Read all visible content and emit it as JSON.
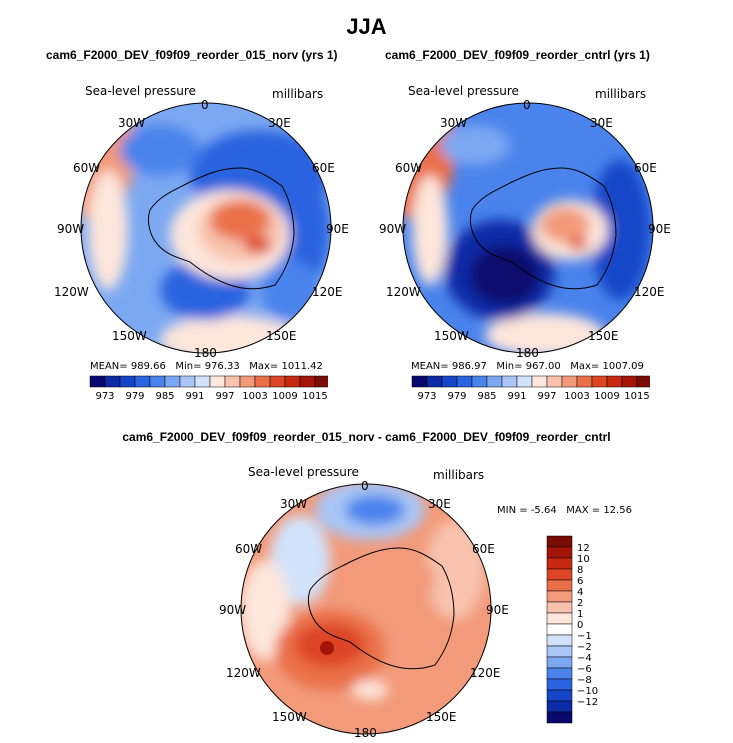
{
  "main_title": "JJA",
  "variable_label": "Sea-level pressure",
  "units_label": "millibars",
  "lon_labels": [
    "0",
    "30E",
    "60E",
    "90E",
    "120E",
    "150E",
    "180",
    "150W",
    "120W",
    "90W",
    "60W",
    "30W"
  ],
  "panels": [
    {
      "title": "cam6_F2000_DEV_f09f09_reorder_015_norv (yrs 1)",
      "stats": {
        "mean_label": "MEAN=",
        "mean": "989.66",
        "min_label": "Min=",
        "min": "976.33",
        "max_label": "Max=",
        "max": "1011.42"
      }
    },
    {
      "title": "cam6_F2000_DEV_f09f09_reorder_cntrl (yrs 1)",
      "stats": {
        "mean_label": "MEAN=",
        "mean": "986.97",
        "min_label": "Min=",
        "min": "967.00",
        "max_label": "Max=",
        "max": "1007.09"
      }
    },
    {
      "title": "cam6_F2000_DEV_f09f09_reorder_015_norv - cam6_F2000_DEV_f09f09_reorder_cntrl",
      "stats": {
        "min_label": "MIN =",
        "min": "-5.64",
        "max_label": "MAX =",
        "max": "12.56"
      }
    }
  ],
  "colorbar_abs": {
    "colors": [
      "#08086e",
      "#0b2ba6",
      "#1546c8",
      "#2a63df",
      "#4a83ec",
      "#7ca8f2",
      "#a9c6f6",
      "#d2e2fb",
      "#fde6dc",
      "#f8c2ad",
      "#f29a7a",
      "#ea6f48",
      "#dd4525",
      "#c62810",
      "#a51507",
      "#7a0c06"
    ],
    "tick_labels": [
      "973",
      "979",
      "985",
      "991",
      "997",
      "1003",
      "1009",
      "1015"
    ]
  },
  "colorbar_diff": {
    "colors": [
      "#7a0c06",
      "#a51507",
      "#c62810",
      "#dd4525",
      "#ea6f48",
      "#f29a7a",
      "#f8c2ad",
      "#fde6dc",
      "#ffffff",
      "#d2e2fb",
      "#a9c6f6",
      "#7ca8f2",
      "#4a83ec",
      "#2a63df",
      "#1546c8",
      "#0b2ba6",
      "#08086e"
    ],
    "tick_labels": [
      "12",
      "10",
      "8",
      "6",
      "4",
      "2",
      "1",
      "0",
      "−1",
      "−2",
      "−4",
      "−6",
      "−8",
      "−10",
      "−12"
    ]
  }
}
